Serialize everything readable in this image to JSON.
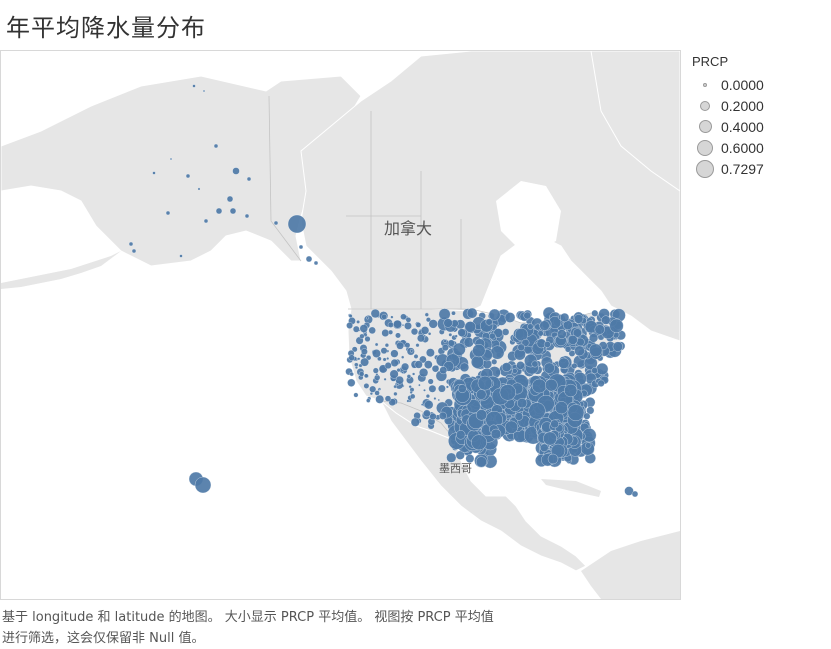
{
  "title": "年平均降水量分布",
  "legend": {
    "title": "PRCP",
    "items": [
      {
        "label": "0.0000",
        "value": 0.0
      },
      {
        "label": "0.2000",
        "value": 0.2
      },
      {
        "label": "0.4000",
        "value": 0.4
      },
      {
        "label": "0.6000",
        "value": 0.6
      },
      {
        "label": "0.7297",
        "value": 0.7297
      }
    ],
    "fill_color": "#d6d6d6",
    "stroke_color": "#9a9a9a"
  },
  "map": {
    "labels": {
      "canada": "加拿大",
      "mexico": "墨西哥"
    },
    "colors": {
      "land": "#e6e6e6",
      "water": "#ffffff",
      "border": "#c4c4c4",
      "point": "#4e79a7"
    }
  },
  "caption": {
    "line1": "基于 longitude 和 latitude 的地图。 大小显示 PRCP 平均值。 视图按 PRCP 平均值",
    "line2": "进行筛选，这会仅保留非 Null 值。"
  }
}
